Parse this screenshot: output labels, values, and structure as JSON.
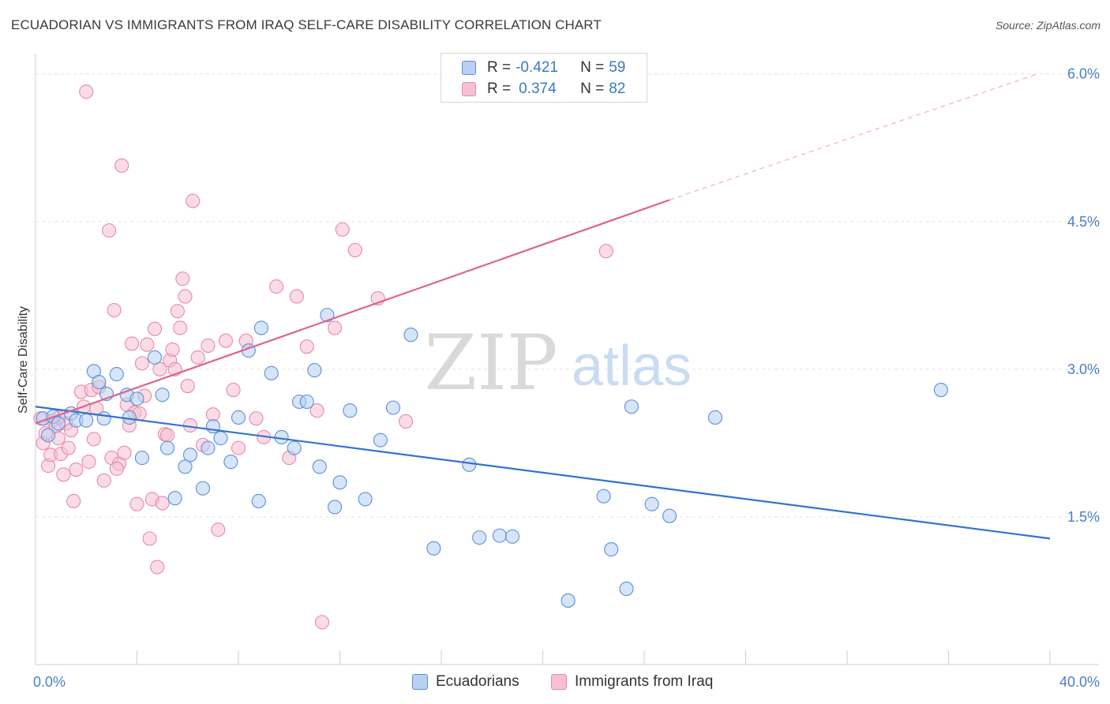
{
  "title": "ECUADORIAN VS IMMIGRANTS FROM IRAQ SELF-CARE DISABILITY CORRELATION CHART",
  "source": "Source: ZipAtlas.com",
  "watermark": {
    "zip": "ZIP",
    "atlas": "atlas"
  },
  "legend": {
    "r_label": "R =",
    "n_label": "N =",
    "rows": [
      {
        "r": "-0.421",
        "n": "59"
      },
      {
        "r": "0.374",
        "n": "82"
      }
    ]
  },
  "bottom_legend": [
    "Ecuadorians",
    "Immigrants from Iraq"
  ],
  "colors": {
    "blue_fill": "#b7d0f3",
    "blue_stroke": "#5b8fd8",
    "blue_line": "#2f74d0",
    "pink_fill": "#f7c0d1",
    "pink_stroke": "#e889a7",
    "pink_line": "#e0638c",
    "axis_text": "#4a7fc8",
    "grid": "#e3e3e3"
  },
  "chart_data": {
    "type": "scatter",
    "ylabel": "Self-Care Disability",
    "x_ticks": [
      "0.0%",
      "40.0%"
    ],
    "y_ticks": [
      "1.5%",
      "3.0%",
      "4.5%",
      "6.0%"
    ],
    "xlim": [
      0,
      40
    ],
    "ylim": [
      0.0,
      6.15
    ],
    "series": [
      {
        "name": "Ecuadorians",
        "points": [
          [
            0.3,
            2.5
          ],
          [
            0.5,
            2.33
          ],
          [
            0.7,
            2.52
          ],
          [
            0.9,
            2.45
          ],
          [
            1.4,
            2.55
          ],
          [
            1.6,
            2.48
          ],
          [
            2.0,
            2.48
          ],
          [
            2.3,
            2.98
          ],
          [
            2.5,
            2.87
          ],
          [
            2.7,
            2.5
          ],
          [
            2.8,
            2.75
          ],
          [
            3.2,
            2.95
          ],
          [
            3.6,
            2.74
          ],
          [
            3.7,
            2.51
          ],
          [
            4.0,
            2.7
          ],
          [
            4.2,
            2.1
          ],
          [
            4.7,
            3.12
          ],
          [
            5.0,
            2.74
          ],
          [
            5.2,
            2.2
          ],
          [
            5.5,
            1.69
          ],
          [
            5.9,
            2.01
          ],
          [
            6.1,
            2.13
          ],
          [
            6.6,
            1.79
          ],
          [
            6.8,
            2.2
          ],
          [
            7.0,
            2.42
          ],
          [
            7.3,
            2.3
          ],
          [
            7.7,
            2.06
          ],
          [
            8.0,
            2.51
          ],
          [
            8.4,
            3.19
          ],
          [
            8.8,
            1.66
          ],
          [
            8.9,
            3.42
          ],
          [
            9.3,
            2.96
          ],
          [
            9.7,
            2.31
          ],
          [
            10.2,
            2.2
          ],
          [
            10.4,
            2.67
          ],
          [
            10.7,
            2.67
          ],
          [
            11.0,
            2.99
          ],
          [
            11.2,
            2.01
          ],
          [
            11.5,
            3.55
          ],
          [
            11.8,
            1.6
          ],
          [
            12.0,
            1.85
          ],
          [
            12.4,
            2.58
          ],
          [
            13.0,
            1.68
          ],
          [
            13.6,
            2.28
          ],
          [
            14.1,
            2.61
          ],
          [
            14.8,
            3.35
          ],
          [
            15.7,
            1.18
          ],
          [
            17.1,
            2.03
          ],
          [
            17.5,
            1.29
          ],
          [
            18.3,
            1.31
          ],
          [
            18.8,
            1.3
          ],
          [
            21.0,
            0.65
          ],
          [
            22.4,
            1.71
          ],
          [
            22.7,
            1.17
          ],
          [
            23.3,
            0.77
          ],
          [
            23.5,
            2.62
          ],
          [
            24.3,
            1.63
          ],
          [
            25.0,
            1.51
          ],
          [
            26.8,
            2.51
          ],
          [
            35.7,
            2.79
          ]
        ],
        "trend": [
          [
            0,
            2.62
          ],
          [
            40,
            1.28
          ]
        ]
      },
      {
        "name": "Immigrants from Iraq",
        "points": [
          [
            0.2,
            2.5
          ],
          [
            0.3,
            2.25
          ],
          [
            0.4,
            2.35
          ],
          [
            0.5,
            2.02
          ],
          [
            0.6,
            2.13
          ],
          [
            0.7,
            2.48
          ],
          [
            0.8,
            2.42
          ],
          [
            0.9,
            2.3
          ],
          [
            1.0,
            2.14
          ],
          [
            1.1,
            1.93
          ],
          [
            1.2,
            2.45
          ],
          [
            1.4,
            2.38
          ],
          [
            1.5,
            1.66
          ],
          [
            1.6,
            1.98
          ],
          [
            1.8,
            2.77
          ],
          [
            1.9,
            2.62
          ],
          [
            2.0,
            5.82
          ],
          [
            2.1,
            2.06
          ],
          [
            2.2,
            2.79
          ],
          [
            2.3,
            2.29
          ],
          [
            2.5,
            2.82
          ],
          [
            2.7,
            1.87
          ],
          [
            2.9,
            4.41
          ],
          [
            3.0,
            2.1
          ],
          [
            3.1,
            3.6
          ],
          [
            3.3,
            2.04
          ],
          [
            3.4,
            5.07
          ],
          [
            3.5,
            2.15
          ],
          [
            3.6,
            2.64
          ],
          [
            3.7,
            2.43
          ],
          [
            3.8,
            3.26
          ],
          [
            3.9,
            2.56
          ],
          [
            4.0,
            1.63
          ],
          [
            4.1,
            2.55
          ],
          [
            4.2,
            3.06
          ],
          [
            4.3,
            2.73
          ],
          [
            4.4,
            3.25
          ],
          [
            4.5,
            1.28
          ],
          [
            4.6,
            1.68
          ],
          [
            4.7,
            3.41
          ],
          [
            4.8,
            0.99
          ],
          [
            5.0,
            1.64
          ],
          [
            5.1,
            2.34
          ],
          [
            5.2,
            2.33
          ],
          [
            5.3,
            3.09
          ],
          [
            5.4,
            3.2
          ],
          [
            5.5,
            3.0
          ],
          [
            5.6,
            3.59
          ],
          [
            5.7,
            3.42
          ],
          [
            5.8,
            3.92
          ],
          [
            5.9,
            3.74
          ],
          [
            6.0,
            2.83
          ],
          [
            6.1,
            2.43
          ],
          [
            6.2,
            4.71
          ],
          [
            6.4,
            3.12
          ],
          [
            6.6,
            2.23
          ],
          [
            6.8,
            3.24
          ],
          [
            7.0,
            2.54
          ],
          [
            7.2,
            1.37
          ],
          [
            7.5,
            3.29
          ],
          [
            7.8,
            2.79
          ],
          [
            8.0,
            2.2
          ],
          [
            8.3,
            3.29
          ],
          [
            8.7,
            2.5
          ],
          [
            9.0,
            2.31
          ],
          [
            9.5,
            3.84
          ],
          [
            10.0,
            2.1
          ],
          [
            10.3,
            3.74
          ],
          [
            10.7,
            3.23
          ],
          [
            11.1,
            2.58
          ],
          [
            11.3,
            0.43
          ],
          [
            11.8,
            3.42
          ],
          [
            12.1,
            4.42
          ],
          [
            12.6,
            4.21
          ],
          [
            13.5,
            3.72
          ],
          [
            14.6,
            2.47
          ],
          [
            0.9,
            2.51
          ],
          [
            1.3,
            2.2
          ],
          [
            2.4,
            2.6
          ],
          [
            3.2,
            1.99
          ],
          [
            4.9,
            3.0
          ],
          [
            22.5,
            4.2
          ]
        ],
        "trend": [
          [
            0,
            2.45
          ],
          [
            25,
            4.72
          ]
        ],
        "trend_extension": [
          [
            25,
            4.72
          ],
          [
            39.5,
            6.0
          ]
        ]
      }
    ]
  }
}
